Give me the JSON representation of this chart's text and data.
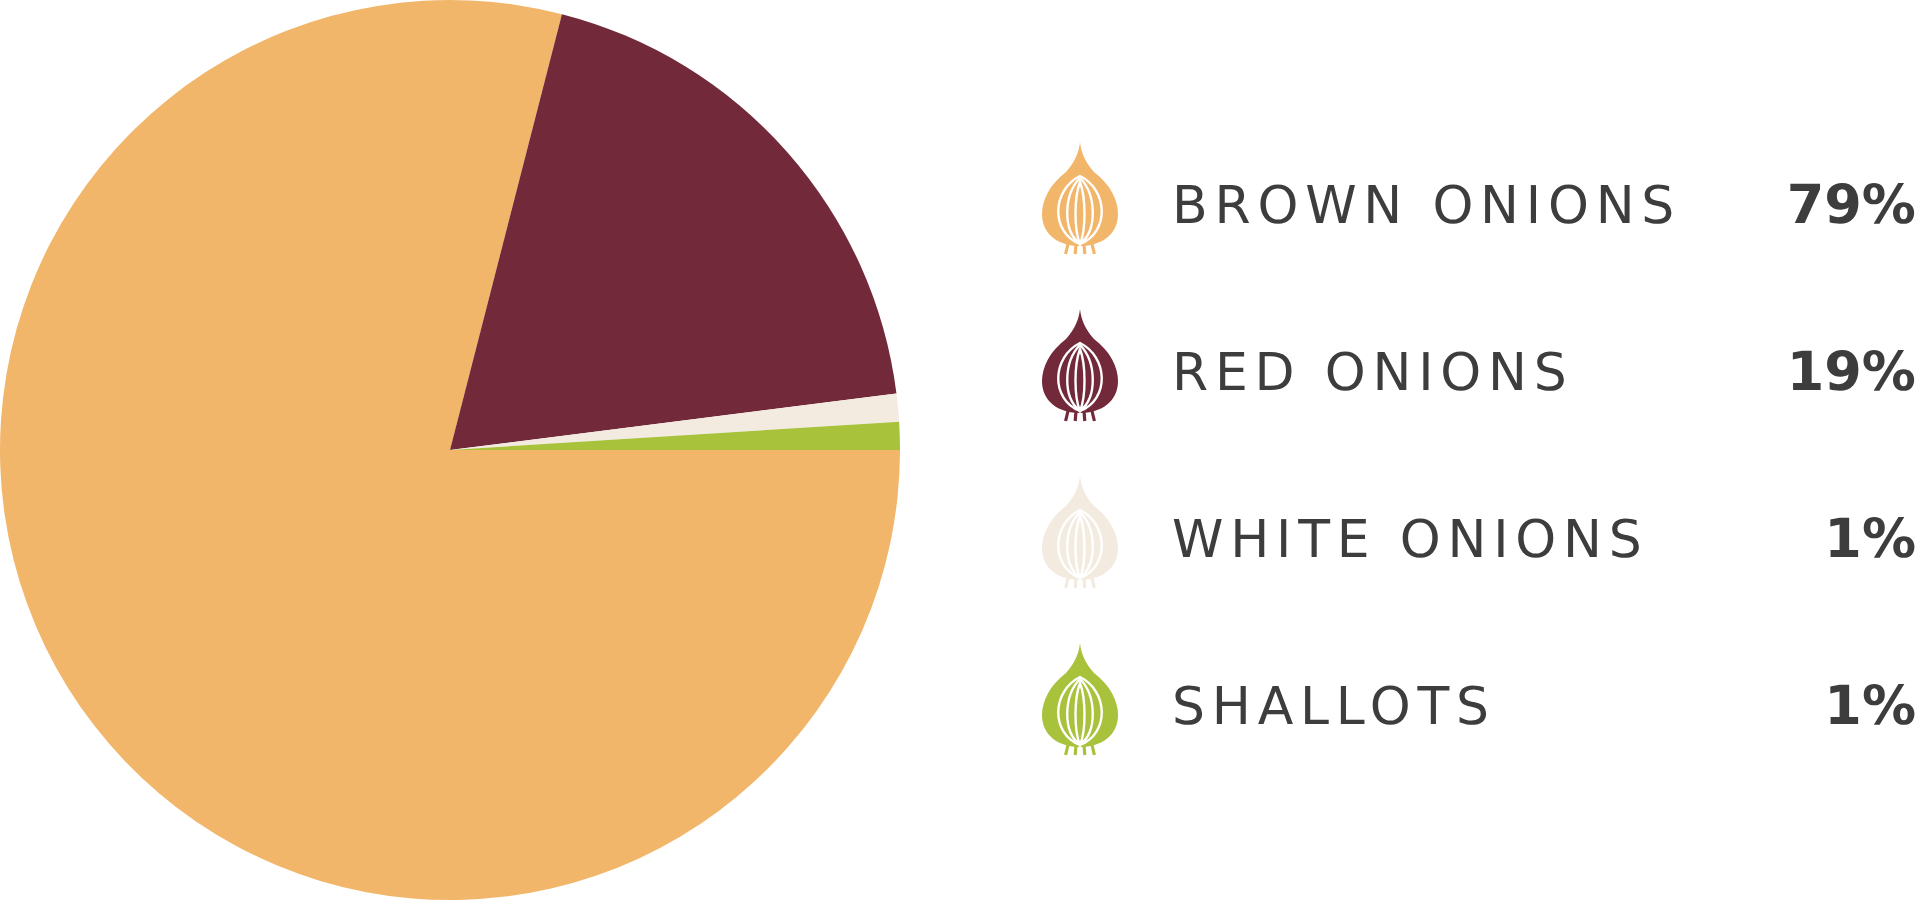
{
  "chart_data": {
    "type": "pie",
    "categories": [
      "BROWN ONIONS",
      "RED ONIONS",
      "WHITE ONIONS",
      "SHALLOTS"
    ],
    "values": [
      79,
      19,
      1,
      1
    ],
    "colors": [
      "#f2b66b",
      "#72293a",
      "#f3ebdf",
      "#a8c23c"
    ],
    "value_labels": [
      "79%",
      "19%",
      "1%",
      "1%"
    ],
    "legend": "right"
  }
}
